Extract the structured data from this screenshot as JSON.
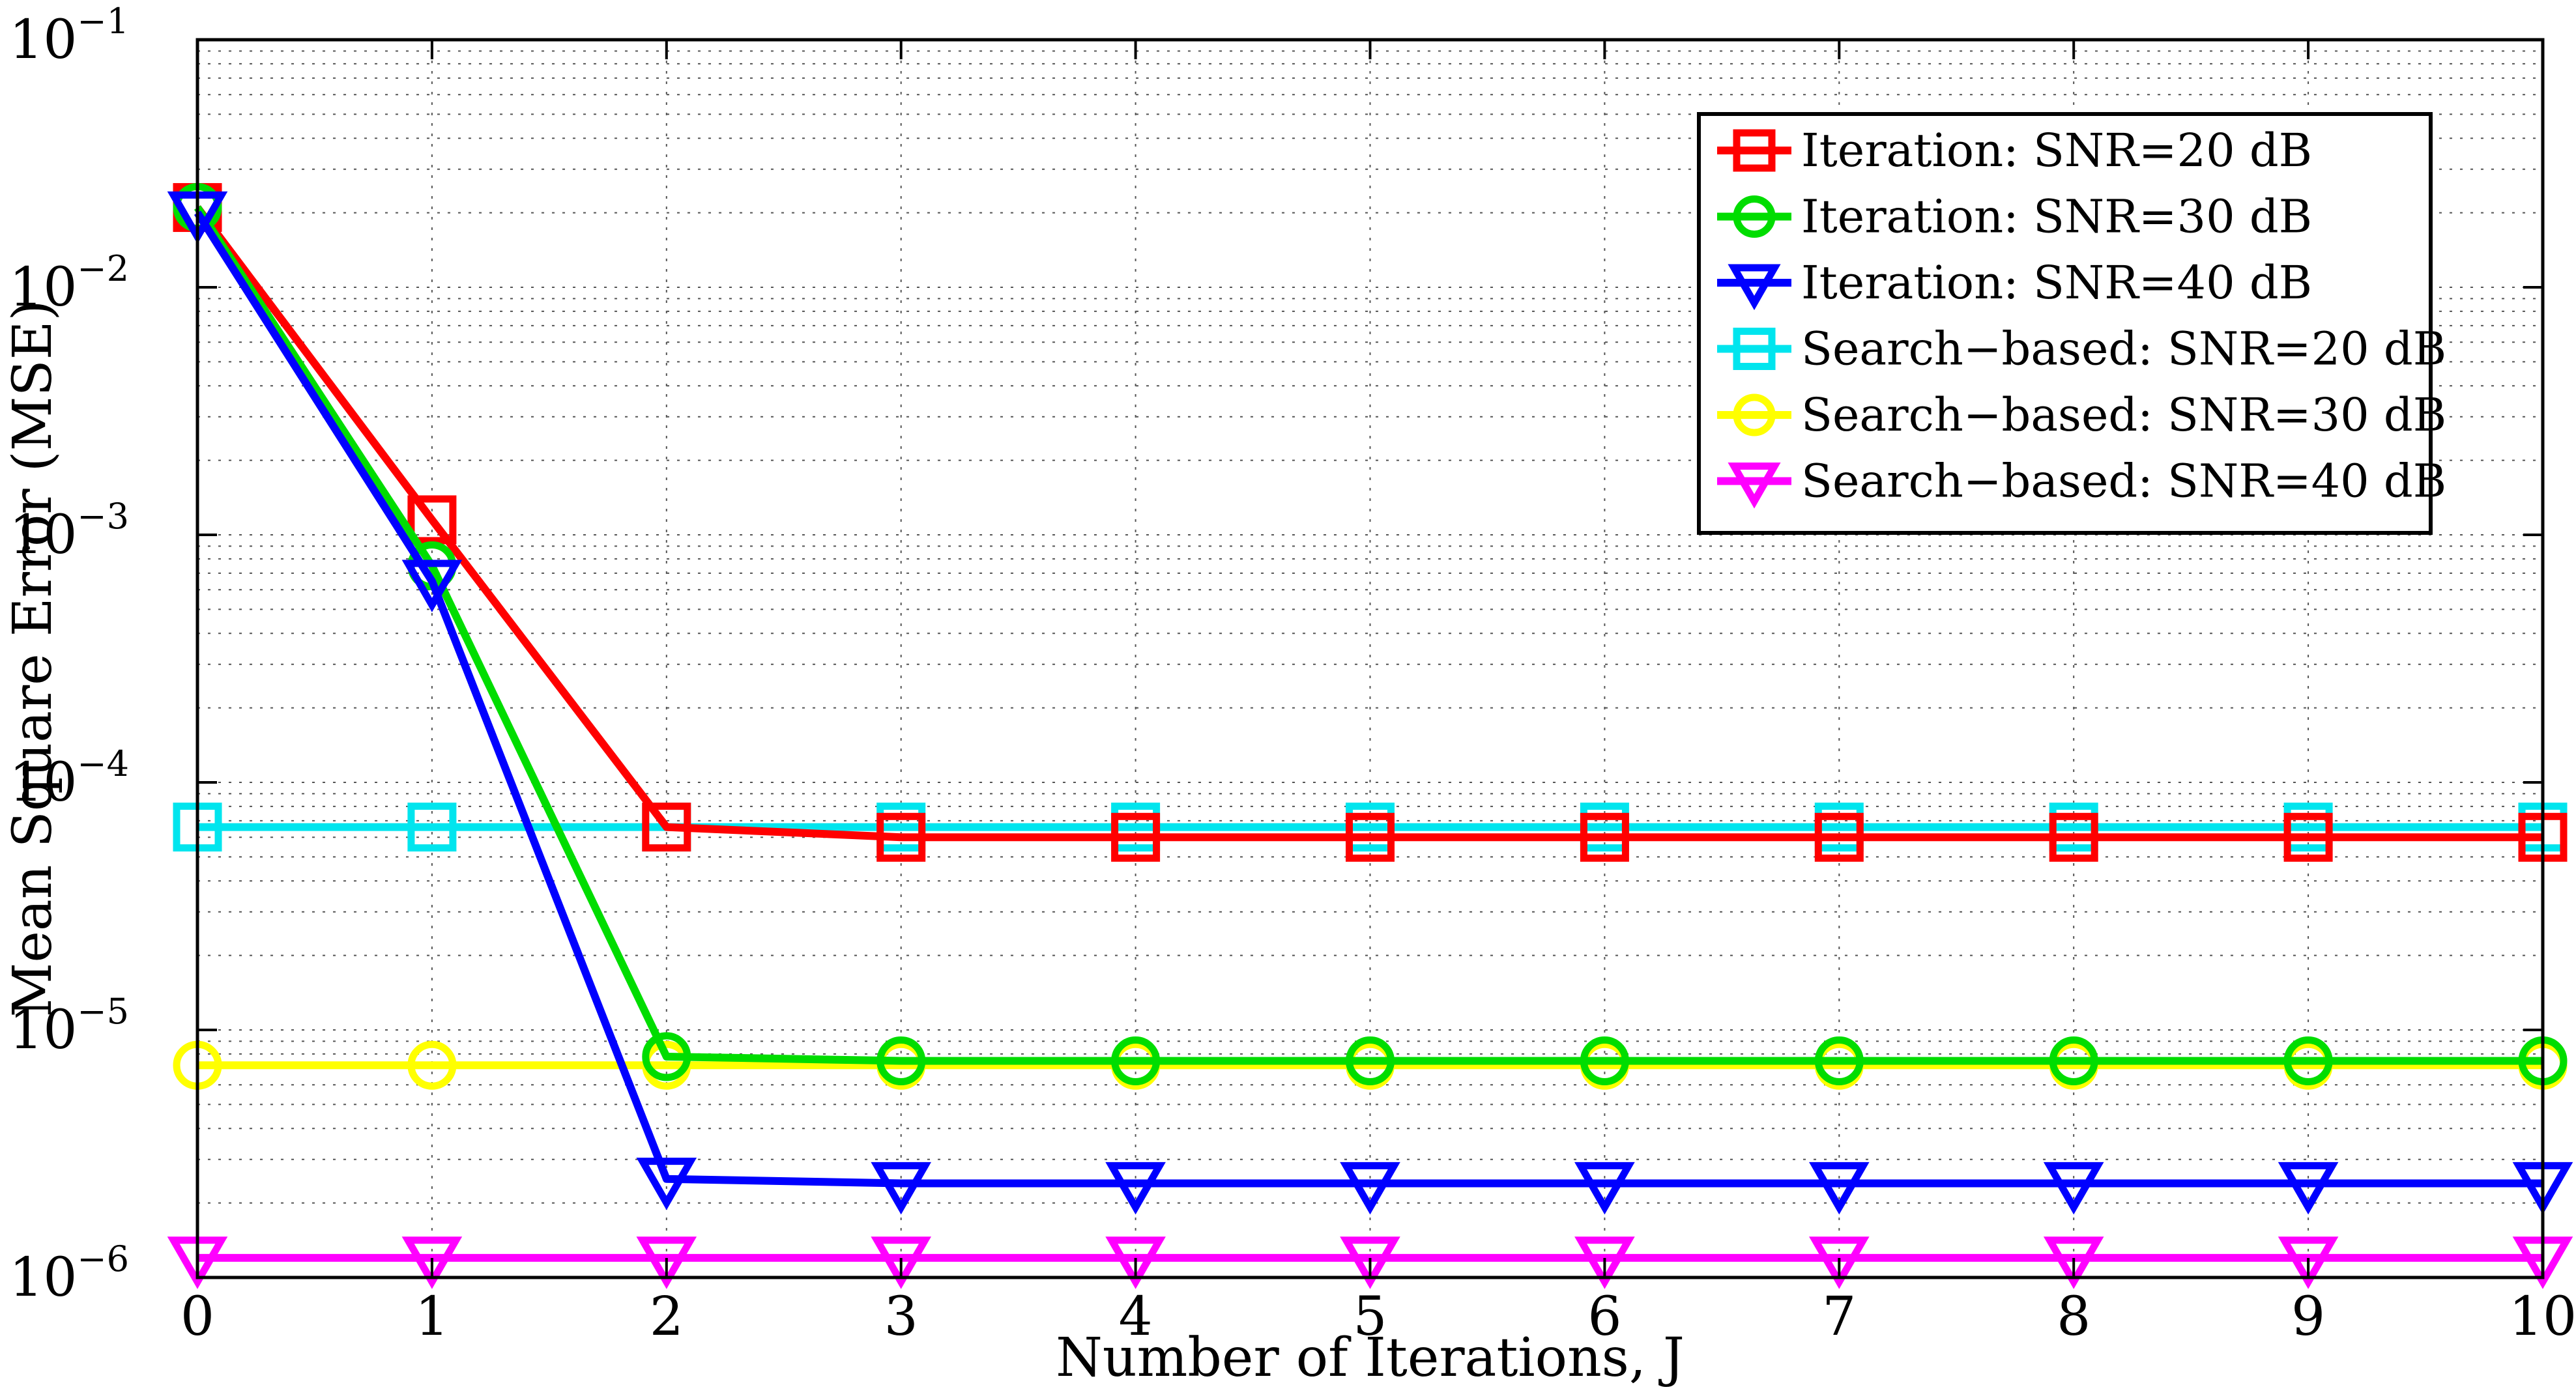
{
  "chart_data": {
    "type": "line",
    "xlabel": "Number of Iterations, J",
    "ylabel": "Mean Square Error (MSE)",
    "yscale": "log",
    "xlim": [
      0,
      10
    ],
    "ylim": [
      1e-06,
      0.1
    ],
    "grid": true,
    "legend_position": "top-right",
    "x": [
      0,
      1,
      2,
      3,
      4,
      5,
      6,
      7,
      8,
      9,
      10
    ],
    "x_tick_labels": [
      "0",
      "1",
      "2",
      "3",
      "4",
      "5",
      "6",
      "7",
      "8",
      "9",
      "10"
    ],
    "y_ticks": [
      {
        "value": 0.1,
        "base": "10",
        "exp": "−1"
      },
      {
        "value": 0.01,
        "base": "10",
        "exp": "−2"
      },
      {
        "value": 0.001,
        "base": "10",
        "exp": "−3"
      },
      {
        "value": 0.0001,
        "base": "10",
        "exp": "−4"
      },
      {
        "value": 1e-05,
        "base": "10",
        "exp": "−5"
      },
      {
        "value": 1e-06,
        "base": "10",
        "exp": "−6"
      }
    ],
    "series": [
      {
        "name": "Iteration: SNR=20 dB",
        "color": "#ff0000",
        "marker": "square",
        "values": [
          0.021,
          0.00115,
          6.6e-05,
          6e-05,
          6e-05,
          6e-05,
          6e-05,
          6e-05,
          6e-05,
          6e-05,
          6e-05
        ]
      },
      {
        "name": "Iteration: SNR=30 dB",
        "color": "#00dd00",
        "marker": "circle",
        "values": [
          0.021,
          0.00075,
          7.8e-06,
          7.5e-06,
          7.5e-06,
          7.5e-06,
          7.5e-06,
          7.5e-06,
          7.5e-06,
          7.5e-06,
          7.5e-06
        ]
      },
      {
        "name": "Iteration: SNR=40 dB",
        "color": "#0000ff",
        "marker": "triangle-down",
        "values": [
          0.02,
          0.00065,
          2.5e-06,
          2.4e-06,
          2.4e-06,
          2.4e-06,
          2.4e-06,
          2.4e-06,
          2.4e-06,
          2.4e-06,
          2.4e-06
        ]
      },
      {
        "name": "Search−based: SNR=20 dB",
        "color": "#00e5ee",
        "marker": "square",
        "values": [
          6.6e-05,
          6.6e-05,
          6.6e-05,
          6.6e-05,
          6.6e-05,
          6.6e-05,
          6.6e-05,
          6.6e-05,
          6.6e-05,
          6.6e-05,
          6.6e-05
        ]
      },
      {
        "name": "Search−based: SNR=30 dB",
        "color": "#ffff00",
        "marker": "circle",
        "values": [
          7.2e-06,
          7.2e-06,
          7.2e-06,
          7.2e-06,
          7.2e-06,
          7.2e-06,
          7.2e-06,
          7.2e-06,
          7.2e-06,
          7.2e-06,
          7.2e-06
        ]
      },
      {
        "name": "Search−based: SNR=40 dB",
        "color": "#ff00ff",
        "marker": "triangle-down",
        "values": [
          1.2e-06,
          1.2e-06,
          1.2e-06,
          1.2e-06,
          1.2e-06,
          1.2e-06,
          1.2e-06,
          1.2e-06,
          1.2e-06,
          1.2e-06,
          1.2e-06
        ]
      }
    ]
  }
}
